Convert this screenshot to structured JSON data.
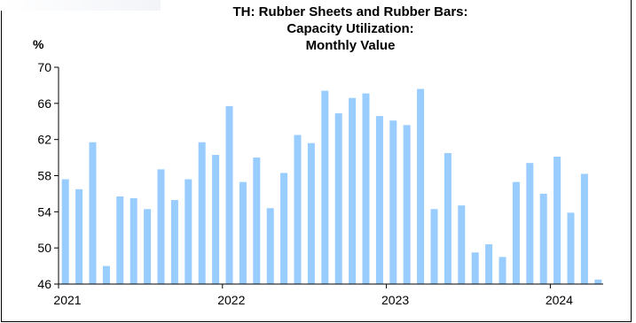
{
  "chart_data": {
    "type": "bar",
    "title_lines": [
      "TH: Rubber Sheets and Rubber Bars:",
      "Capacity Utilization:",
      "Monthly Value"
    ],
    "ylabel": "%",
    "ylim": [
      46,
      70
    ],
    "yticks": [
      46,
      50,
      54,
      58,
      62,
      66,
      70
    ],
    "xticks": [
      "2021",
      "2022",
      "2023",
      "2024"
    ],
    "grid": false,
    "bar_color": "#99ccff",
    "series": [
      {
        "values": [
          57.6,
          56.5,
          61.7,
          48.0,
          55.7,
          55.5,
          54.3,
          58.7,
          55.3,
          57.6,
          61.7,
          60.3,
          65.7,
          57.3,
          60.0,
          54.4,
          58.3,
          62.5,
          61.6,
          67.4,
          64.9,
          66.6,
          67.1,
          64.6,
          64.1,
          63.6,
          67.6,
          54.3,
          60.5,
          54.7,
          49.5,
          50.4,
          49.0,
          57.3,
          59.4,
          56.0,
          60.1,
          53.9,
          58.2,
          46.5
        ]
      }
    ]
  }
}
